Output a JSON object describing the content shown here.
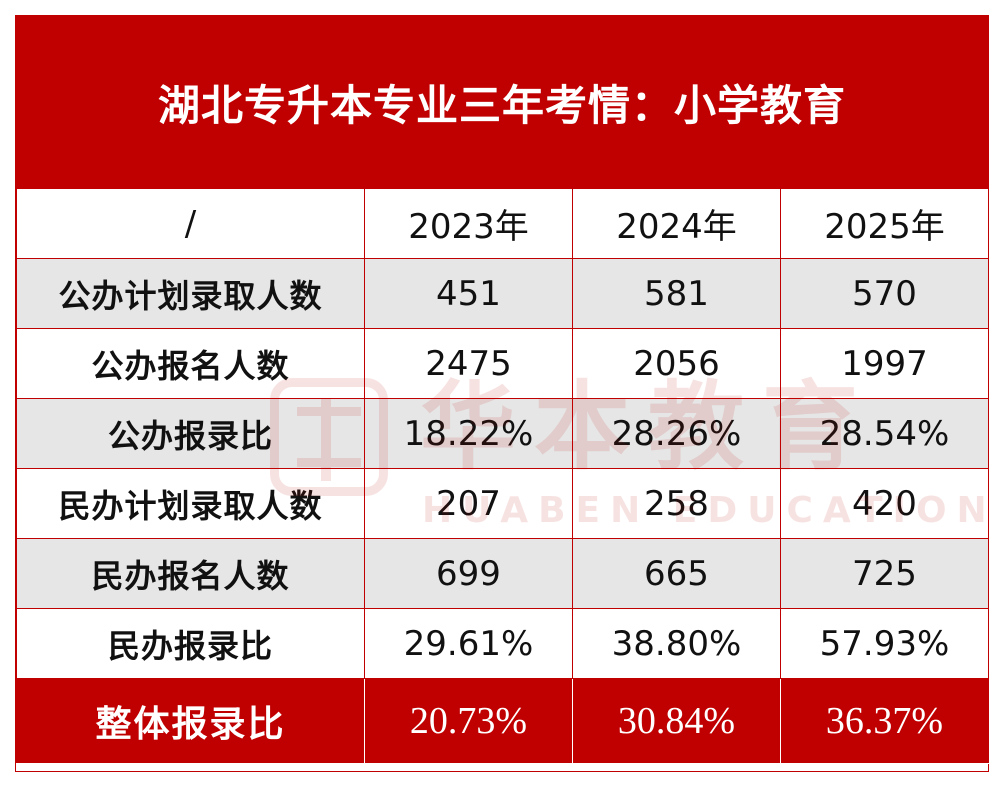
{
  "title": "湖北专升本专业三年考情：小学教育",
  "header": {
    "corner": "/",
    "years": [
      "2023年",
      "2024年",
      "2025年"
    ]
  },
  "rows": [
    {
      "label": "公办计划录取人数",
      "values": [
        "451",
        "581",
        "570"
      ]
    },
    {
      "label": "公办报名人数",
      "values": [
        "2475",
        "2056",
        "1997"
      ]
    },
    {
      "label": "公办报录比",
      "values": [
        "18.22%",
        "28.26%",
        "28.54%"
      ]
    },
    {
      "label": "民办计划录取人数",
      "values": [
        "207",
        "258",
        "420"
      ]
    },
    {
      "label": "民办报名人数",
      "values": [
        "699",
        "665",
        "725"
      ]
    },
    {
      "label": "民办报录比",
      "values": [
        "29.61%",
        "38.80%",
        "57.93%"
      ]
    }
  ],
  "total": {
    "label": "整体报录比",
    "values": [
      "20.73%",
      "30.84%",
      "36.37%"
    ]
  },
  "watermark": {
    "cn": "华本教育",
    "en": "HUABEN EDUCATION",
    "icon": "huaben-logo-icon"
  },
  "colors": {
    "accent": "#c00000",
    "shade": "#e6e6e6",
    "text": "#111111"
  }
}
